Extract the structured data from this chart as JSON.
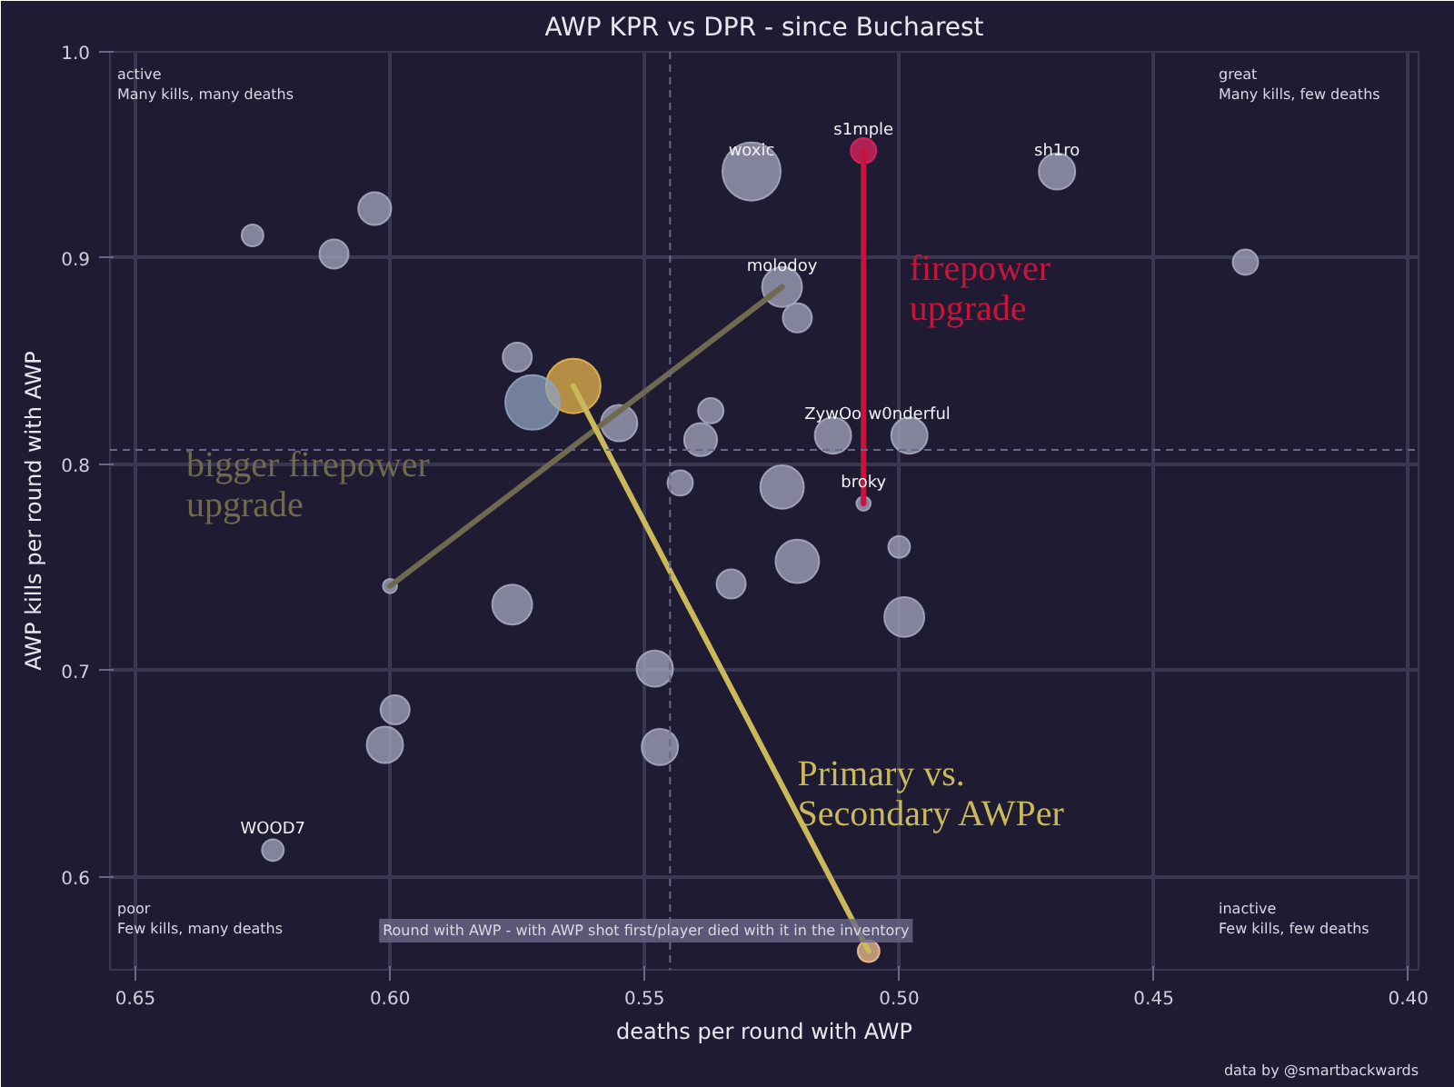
{
  "chart_data": {
    "type": "bubble",
    "title": "AWP KPR vs DPR - since Bucharest",
    "xlabel": "deaths per round with AWP",
    "ylabel": "AWP kills per round with AWP",
    "xlim": [
      0.655,
      0.398
    ],
    "ylim": [
      0.555,
      1.0
    ],
    "xticks": [
      {
        "value": 0.65,
        "label": "0.65"
      },
      {
        "value": 0.6,
        "label": "0.60"
      },
      {
        "value": 0.55,
        "label": "0.55"
      },
      {
        "value": 0.5,
        "label": "0.50"
      },
      {
        "value": 0.45,
        "label": "0.45"
      },
      {
        "value": 0.4,
        "label": "0.40"
      }
    ],
    "yticks": [
      {
        "value": 0.6,
        "label": "0.6"
      },
      {
        "value": 0.7,
        "label": "0.7"
      },
      {
        "value": 0.8,
        "label": "0.8"
      },
      {
        "value": 0.9,
        "label": "0.9"
      },
      {
        "value": 1.0,
        "label": "1.0"
      }
    ],
    "grid": true,
    "ref_lines": [
      {
        "axis": "x",
        "value": 0.545,
        "line_style": "dashed",
        "color": "#6a6788"
      },
      {
        "axis": "y",
        "value": 0.807,
        "line_style": "dashed",
        "color": "#6a6788"
      }
    ],
    "series": [
      {
        "type": "bubble",
        "x": [
          0.529,
          0.507,
          0.469,
          0.603,
          0.627,
          0.611,
          0.432,
          0.523,
          0.52,
          0.575,
          0.564,
          0.572,
          0.555,
          0.537,
          0.539,
          0.513,
          0.498,
          0.543,
          0.523,
          0.507,
          0.5,
          0.52,
          0.533,
          0.6,
          0.576,
          0.499,
          0.548,
          0.599,
          0.601,
          0.547,
          0.623,
          0.506
        ],
        "values": [
          0.942,
          0.952,
          0.942,
          0.924,
          0.911,
          0.902,
          0.898,
          0.886,
          0.871,
          0.852,
          0.838,
          0.83,
          0.82,
          0.826,
          0.812,
          0.814,
          0.814,
          0.791,
          0.789,
          0.781,
          0.76,
          0.753,
          0.742,
          0.741,
          0.732,
          0.726,
          0.701,
          0.681,
          0.664,
          0.663,
          0.613,
          0.564
        ],
        "sizes": [
          1.0,
          0.19,
          0.39,
          0.32,
          0.14,
          0.25,
          0.19,
          0.47,
          0.25,
          0.25,
          0.88,
          0.88,
          0.39,
          0.19,
          0.32,
          0.39,
          0.39,
          0.19,
          0.56,
          0.06,
          0.14,
          0.56,
          0.25,
          0.06,
          0.47,
          0.47,
          0.39,
          0.25,
          0.39,
          0.39,
          0.14,
          0.14
        ],
        "colors": [
          "#a7a7c0",
          "#e0245e",
          "#a7a7c0",
          "#a7a7c0",
          "#a7a7c0",
          "#a7a7c0",
          "#a7a7c0",
          "#a7a7c0",
          "#a7a7c0",
          "#a7a7c0",
          "#e8b54d",
          "#8fa3bf",
          "#a7a7c0",
          "#a7a7c0",
          "#a7a7c0",
          "#a7a7c0",
          "#a7a7c0",
          "#a7a7c0",
          "#a7a7c0",
          "#a7a7c0",
          "#a7a7c0",
          "#a7a7c0",
          "#a7a7c0",
          "#a7a7c0",
          "#a7a7c0",
          "#a7a7c0",
          "#a7a7c0",
          "#a7a7c0",
          "#a7a7c0",
          "#a7a7c0",
          "#a7a7c0",
          "#f0c090"
        ]
      },
      {
        "type": "line",
        "marker": "none",
        "name": "firepower upgrade",
        "color": "#c8143c",
        "x": [
          0.507,
          0.507
        ],
        "values": [
          0.952,
          0.781
        ]
      },
      {
        "type": "line",
        "marker": "none",
        "name": "bigger firepower upgrade",
        "color": "#6f6a4f",
        "x": [
          0.6,
          0.523
        ],
        "values": [
          0.741,
          0.886
        ]
      },
      {
        "type": "line",
        "marker": "none",
        "name": "Primary vs. Secondary AWPer",
        "color": "#c9b95a",
        "x": [
          0.564,
          0.506
        ],
        "values": [
          0.838,
          0.564
        ]
      }
    ],
    "annotations": [
      "active\nMany kills, many deaths",
      "great\nMany kills, few deaths",
      "poor\nFew kills, many deaths",
      "inactive\nFew kills, few deaths",
      "Round with AWP - with AWP shot first/player died with it in the inventory",
      "data by @smartbackwards",
      {
        "text": "woxic",
        "x": 0.529,
        "y": 0.942
      },
      {
        "text": "s1mple",
        "x": 0.507,
        "y": 0.952
      },
      {
        "text": "sh1ro",
        "x": 0.469,
        "y": 0.942
      },
      {
        "text": "molodoy",
        "x": 0.523,
        "y": 0.886
      },
      {
        "text": "ZywOo",
        "x": 0.513,
        "y": 0.814
      },
      {
        "text": "w0nderful",
        "x": 0.498,
        "y": 0.814
      },
      {
        "text": "broky",
        "x": 0.507,
        "y": 0.781
      },
      {
        "text": "WOOD7",
        "x": 0.623,
        "y": 0.613
      }
    ]
  }
}
